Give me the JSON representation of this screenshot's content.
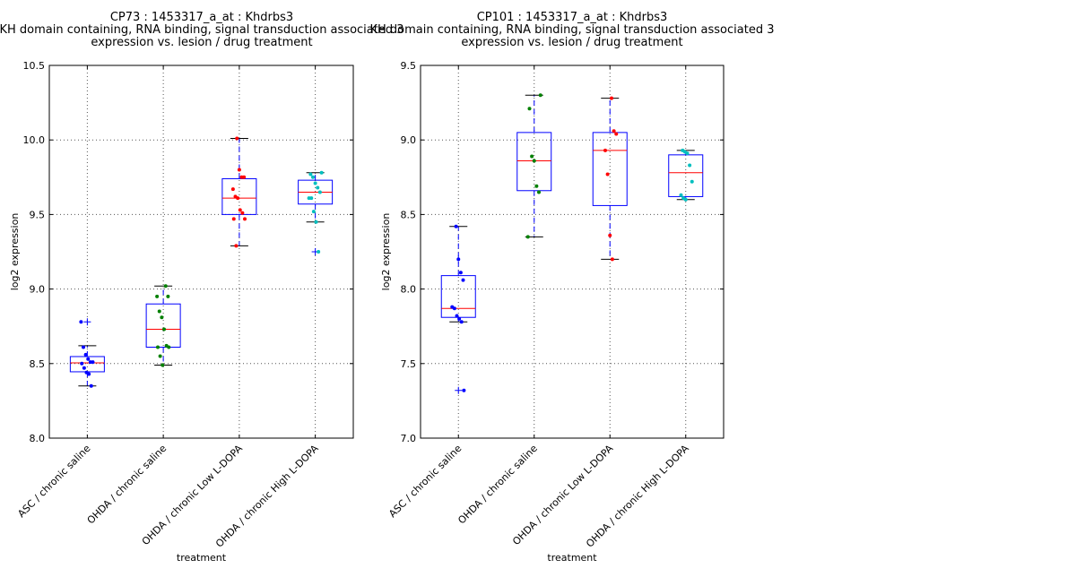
{
  "chart_data": [
    {
      "type": "box",
      "title": [
        "CP73 : 1453317_a_at : Khdrbs3",
        "KH domain containing, RNA binding, signal transduction associated 3",
        "expression vs. lesion / drug treatment"
      ],
      "xlabel": "treatment",
      "ylabel": "log2 expression",
      "ylim": [
        8.0,
        10.5
      ],
      "yticks": [
        "8.0",
        "8.5",
        "9.0",
        "9.5",
        "10.0",
        "10.5"
      ],
      "grid": true,
      "categories": [
        "ASC / chronic saline",
        "OHDA / chronic saline",
        "OHDA / chronic Low L-DOPA",
        "OHDA / chronic High L-DOPA"
      ],
      "colors": [
        "#0000ff",
        "#008000",
        "#ff0000",
        "#00bfbf"
      ],
      "boxes": [
        {
          "whislo": 8.35,
          "q1": 8.445,
          "med": 8.505,
          "q3": 8.547,
          "whishi": 8.62,
          "fliers": [
            8.78
          ]
        },
        {
          "whislo": 8.49,
          "q1": 8.61,
          "med": 8.73,
          "q3": 8.9,
          "whishi": 9.02,
          "fliers": []
        },
        {
          "whislo": 9.29,
          "q1": 9.5,
          "med": 9.61,
          "q3": 9.74,
          "whishi": 10.01,
          "fliers": []
        },
        {
          "whislo": 9.45,
          "q1": 9.57,
          "med": 9.65,
          "q3": 9.73,
          "whishi": 9.78,
          "fliers": [
            9.25
          ]
        }
      ],
      "points": [
        [
          8.78,
          8.61,
          8.56,
          8.53,
          8.51,
          8.51,
          8.5,
          8.47,
          8.44,
          8.43,
          8.35
        ],
        [
          9.02,
          8.95,
          8.95,
          8.85,
          8.81,
          8.73,
          8.62,
          8.61,
          8.61,
          8.55,
          8.49
        ],
        [
          10.01,
          9.8,
          9.75,
          9.75,
          9.67,
          9.62,
          9.61,
          9.53,
          9.51,
          9.47,
          9.47,
          9.29
        ],
        [
          9.78,
          9.77,
          9.75,
          9.71,
          9.68,
          9.65,
          9.61,
          9.61,
          9.52,
          9.45,
          9.25
        ]
      ]
    },
    {
      "type": "box",
      "title": [
        "CP101 : 1453317_a_at : Khdrbs3",
        "KH domain containing, RNA binding, signal transduction associated 3",
        "expression vs. lesion / drug treatment"
      ],
      "xlabel": "treatment",
      "ylabel": "log2 expression",
      "ylim": [
        7.0,
        9.5
      ],
      "yticks": [
        "7.0",
        "7.5",
        "8.0",
        "8.5",
        "9.0",
        "9.5"
      ],
      "grid": true,
      "categories": [
        "ASC / chronic saline",
        "OHDA / chronic saline",
        "OHDA / chronic Low L-DOPA",
        "OHDA / chronic High L-DOPA"
      ],
      "colors": [
        "#0000ff",
        "#008000",
        "#ff0000",
        "#00bfbf"
      ],
      "boxes": [
        {
          "whislo": 7.78,
          "q1": 7.81,
          "med": 7.87,
          "q3": 8.09,
          "whishi": 8.42,
          "fliers": [
            7.32
          ]
        },
        {
          "whislo": 8.35,
          "q1": 8.66,
          "med": 8.86,
          "q3": 9.05,
          "whishi": 9.3,
          "fliers": []
        },
        {
          "whislo": 8.2,
          "q1": 8.56,
          "med": 8.93,
          "q3": 9.05,
          "whishi": 9.28,
          "fliers": []
        },
        {
          "whislo": 8.6,
          "q1": 8.62,
          "med": 8.78,
          "q3": 8.9,
          "whishi": 8.93,
          "fliers": []
        }
      ],
      "points": [
        [
          8.42,
          8.2,
          8.11,
          8.06,
          7.88,
          7.87,
          7.82,
          7.8,
          7.78,
          7.32
        ],
        [
          9.3,
          9.21,
          8.89,
          8.86,
          8.69,
          8.65,
          8.35
        ],
        [
          9.28,
          9.06,
          9.04,
          8.93,
          8.77,
          8.36,
          8.2
        ],
        [
          8.93,
          8.92,
          8.91,
          8.83,
          8.72,
          8.63,
          8.61,
          8.6
        ]
      ]
    }
  ]
}
